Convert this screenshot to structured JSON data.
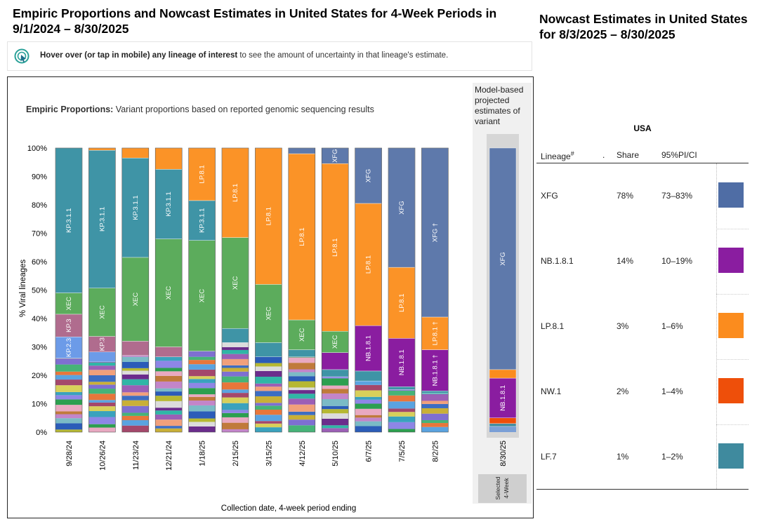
{
  "header": {
    "left_title": "Empiric Proportions and Nowcast Estimates in United States for 4-Week Periods in 9/1/2024 – 8/30/2025",
    "right_title": "Nowcast Estimates in United States for 8/3/2025 – 8/30/2025"
  },
  "hint": {
    "bold_text": "Hover over (or tap in mobile) any lineage of interest",
    "text": " to see the amount of uncertainty in that lineage's estimate."
  },
  "chart": {
    "subtitle_bold": "Empiric Proportions:",
    "subtitle": " Variant proportions based on reported genomic sequencing results",
    "side_header": "Model-based projected estimates of variant",
    "side_footer": "Selected 4-Week"
  },
  "chart_data": {
    "type": "bar",
    "stacked": true,
    "xlabel": "Collection date, 4-week period ending",
    "ylabel": "% Viral lineages",
    "ylim": [
      0,
      100
    ],
    "yticks": [
      "0%",
      "10%",
      "20%",
      "30%",
      "40%",
      "50%",
      "60%",
      "70%",
      "80%",
      "90%",
      "100%"
    ],
    "categories": [
      "9/28/24",
      "10/26/24",
      "11/23/24",
      "12/21/24",
      "1/18/25",
      "2/15/25",
      "3/15/25",
      "4/12/25",
      "5/10/25",
      "6/7/25",
      "7/5/25",
      "8/2/25"
    ],
    "series": [
      {
        "name": "KP.3.1.1",
        "color": "#3f94a6",
        "values": [
          51,
          48.5,
          35,
          24.5,
          14,
          0,
          0,
          0,
          0,
          0,
          0,
          0
        ]
      },
      {
        "name": "XEC",
        "color": "#5cac5c",
        "values": [
          7.5,
          17,
          29.5,
          38,
          39,
          32,
          20.5,
          10.5,
          7.5,
          0,
          0,
          0
        ]
      },
      {
        "name": "KP.3",
        "color": "#b06c8e",
        "values": [
          8,
          5.5,
          5,
          3.5,
          0,
          0,
          0,
          0,
          0,
          0,
          0,
          0
        ]
      },
      {
        "name": "KP.2.3",
        "color": "#6c9be8",
        "values": [
          7.5,
          3.5,
          0,
          0,
          0,
          0,
          0,
          0,
          0,
          0,
          0,
          0
        ]
      },
      {
        "name": "LP.8.1",
        "color": "#fb9327",
        "values": [
          0,
          0.8,
          3.5,
          7.5,
          18.5,
          31.5,
          48,
          58.5,
          59,
          43,
          25,
          11.5
        ]
      },
      {
        "name": "XFG",
        "color": "#5e79ab",
        "values": [
          0,
          0,
          0,
          0,
          0,
          0,
          0,
          2,
          5.5,
          19.5,
          42,
          59.5
        ]
      },
      {
        "name": "NB.1.8.1",
        "color": "#8a1da0",
        "values": [
          0,
          0,
          0,
          0,
          0,
          0,
          0,
          0,
          6,
          16,
          17,
          14.5
        ]
      },
      {
        "name": "LF.7",
        "color": "#3f94a6",
        "values": [
          0,
          0,
          0,
          0,
          0,
          5,
          5,
          2.5,
          2.5,
          3.5,
          1,
          0.8
        ]
      }
    ],
    "bar_labels": [
      [
        "KP.3.1.1",
        "XEC",
        "KP.3",
        "KP.2.3"
      ],
      [
        "KP.3.1.1",
        "XEC",
        "KP.3"
      ],
      [
        "KP.3.1.1",
        "XEC"
      ],
      [
        "KP.3.1.1",
        "XEC"
      ],
      [
        "LP.8.1",
        "KP.3.1.1",
        "XEC"
      ],
      [
        "LP.8.1",
        "XEC"
      ],
      [
        "LP.8.1",
        "XEC"
      ],
      [
        "LP.8.1",
        "XEC"
      ],
      [
        "XFG",
        "LP.8.1",
        "XEC"
      ],
      [
        "XFG",
        "LP.8.1",
        "NB.1.8.1"
      ],
      [
        "XFG",
        "LP.8.1",
        "NB.1.8.1"
      ],
      [
        "XFG †",
        "LP.8.1 †",
        "NB.1.8.1 †"
      ]
    ],
    "nowcast": {
      "category": "8/30/25",
      "labels": [
        "XFG",
        "NB.1.8.1"
      ],
      "values": {
        "XFG": 78,
        "NB.1.8.1": 14,
        "LP.8.1": 3,
        "NW.1": 2,
        "LF.7": 1
      }
    }
  },
  "table": {
    "region": "USA",
    "headers": {
      "lineage": "Lineage",
      "lineage_mark": "#",
      "dot": ".",
      "share": "Share",
      "ci": "95%PI/CI"
    },
    "rows": [
      {
        "lineage": "XFG",
        "share": "78%",
        "ci": "73–83%",
        "color": "#4f6da5"
      },
      {
        "lineage": "NB.1.8.1",
        "share": "14%",
        "ci": "10–19%",
        "color": "#8a1da0"
      },
      {
        "lineage": "LP.8.1",
        "share": "3%",
        "ci": "1–6%",
        "color": "#fb8c1e"
      },
      {
        "lineage": "NW.1",
        "share": "2%",
        "ci": "1–4%",
        "color": "#ee4f0a"
      },
      {
        "lineage": "LF.7",
        "share": "1%",
        "ci": "1–2%",
        "color": "#3f8a9e"
      }
    ]
  }
}
